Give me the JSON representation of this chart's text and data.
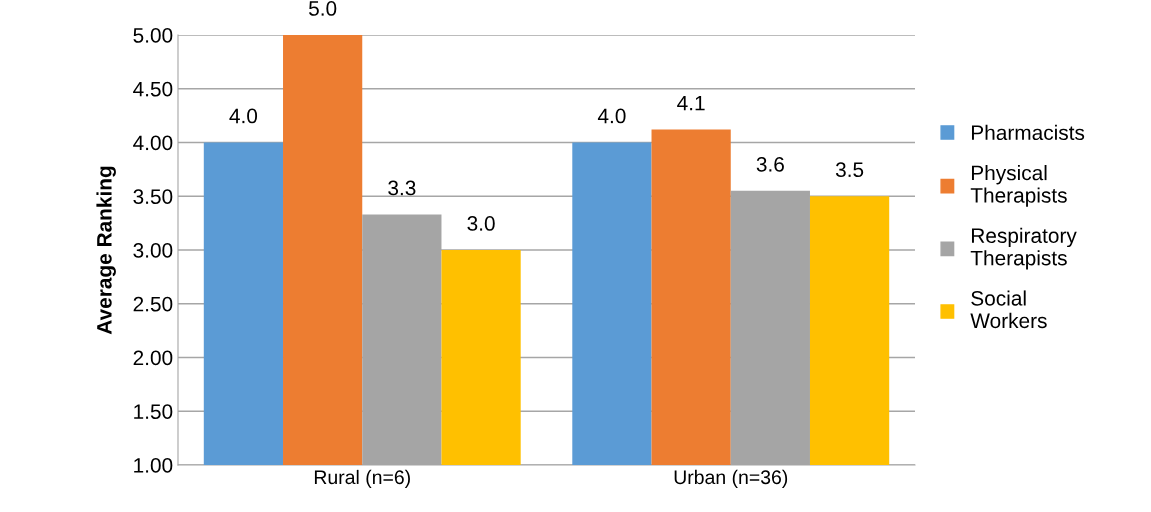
{
  "chart_data": {
    "type": "bar",
    "ylabel": "Average Ranking",
    "categories": [
      "Rural (n=6)",
      "Urban (n=36)"
    ],
    "series": [
      {
        "name": "Pharmacists",
        "color": "#5b9bd5",
        "values": [
          4.0,
          4.0
        ],
        "value_labels": [
          "4.0",
          "4.0"
        ]
      },
      {
        "name": "Physical Therapists",
        "color": "#ed7d31",
        "values": [
          5.0,
          4.12
        ],
        "value_labels": [
          "5.0",
          "4.1"
        ]
      },
      {
        "name": "Respiratory Therapists",
        "color": "#a5a5a5",
        "values": [
          3.33,
          3.55
        ],
        "value_labels": [
          "3.3",
          "3.6"
        ]
      },
      {
        "name": "Social Workers",
        "color": "#ffc000",
        "values": [
          3.0,
          3.5
        ],
        "value_labels": [
          "3.0",
          "3.5"
        ]
      }
    ],
    "ylim": [
      1.0,
      5.0
    ],
    "yticks": [
      {
        "value": 1.0,
        "label": "1.00"
      },
      {
        "value": 1.5,
        "label": "1.50"
      },
      {
        "value": 2.0,
        "label": "2.00"
      },
      {
        "value": 2.5,
        "label": "2.50"
      },
      {
        "value": 3.0,
        "label": "3.00"
      },
      {
        "value": 3.5,
        "label": "3.50"
      },
      {
        "value": 4.0,
        "label": "4.00"
      },
      {
        "value": 4.5,
        "label": "4.50"
      },
      {
        "value": 5.0,
        "label": "5.00"
      }
    ],
    "grid": "y",
    "legend": "right"
  }
}
